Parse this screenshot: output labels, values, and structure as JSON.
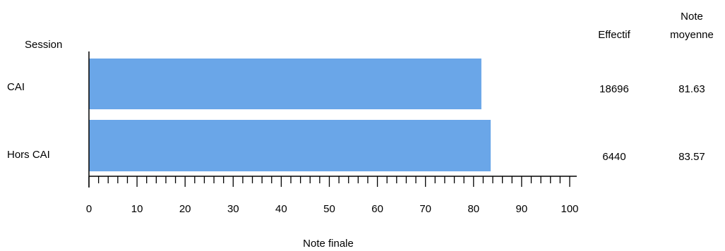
{
  "chart_data": {
    "type": "bar",
    "orientation": "horizontal",
    "category_axis_title": "Session",
    "categories": [
      "CAI",
      "Hors CAI"
    ],
    "series": [
      {
        "values": [
          81.63,
          83.57
        ]
      }
    ],
    "xlabel": "Note finale",
    "xlim": [
      0,
      100
    ],
    "major_ticks": [
      0,
      10,
      20,
      30,
      40,
      50,
      60,
      70,
      80,
      90,
      100
    ],
    "minor_tick_step": 2,
    "grid": false,
    "bar_color": "#6aa6e8",
    "table": {
      "columns": [
        {
          "header_lines": [
            "",
            "Effectif"
          ],
          "values": [
            "18696",
            "6440"
          ]
        },
        {
          "header_lines": [
            "Note",
            "moyenne"
          ],
          "values": [
            "81.63",
            "83.57"
          ]
        }
      ]
    }
  }
}
